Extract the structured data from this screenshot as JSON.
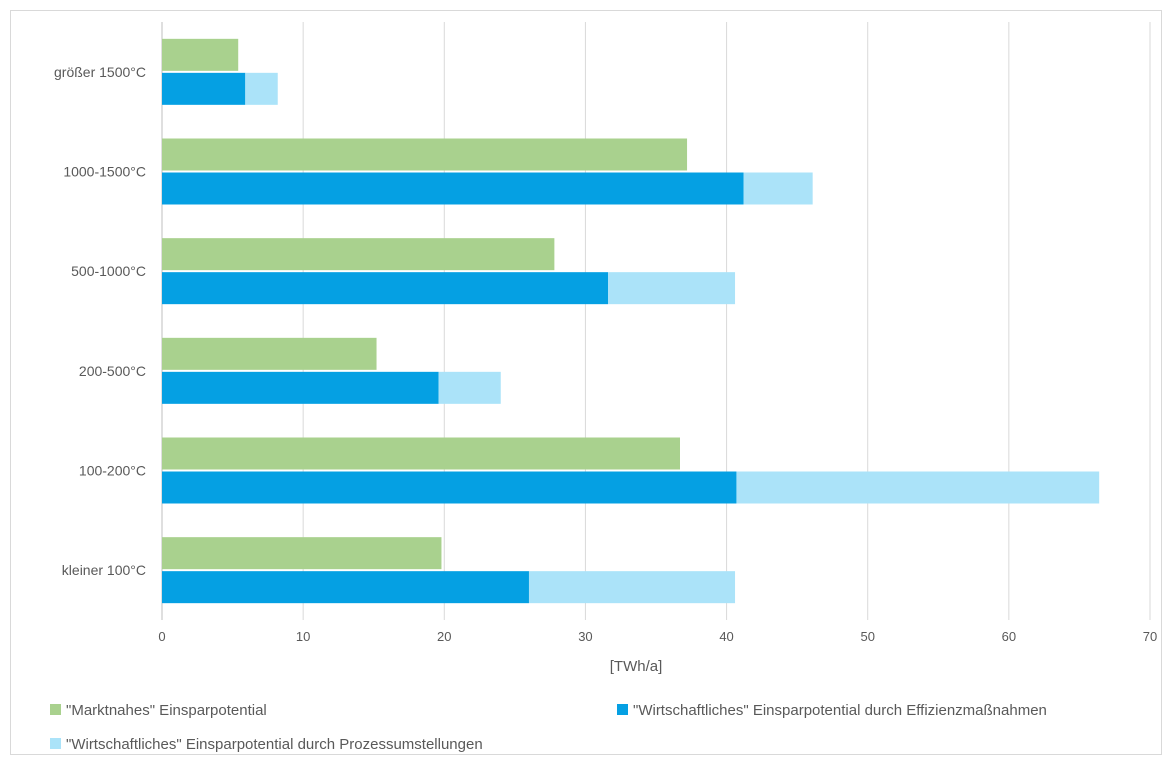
{
  "chart_data": {
    "type": "bar",
    "orientation": "horizontal",
    "title": "",
    "xlabel": "[TWh/a]",
    "ylabel": "",
    "xlim": [
      0,
      70
    ],
    "x_ticks": [
      "0",
      "10",
      "20",
      "30",
      "40",
      "50",
      "60",
      "70"
    ],
    "grid": "vertical",
    "legend_position": "bottom",
    "categories": [
      "größer 1500°C",
      "1000-1500°C",
      "500-1000°C",
      "200-500°C",
      "100-200°C",
      "kleiner 100°C"
    ],
    "series": [
      {
        "name": "\"Marktnahes\" Einsparpotential",
        "color": "#a9d18e",
        "bar": "upper",
        "values": [
          5.4,
          37.2,
          27.8,
          15.2,
          36.7,
          19.8
        ]
      },
      {
        "name": "\"Wirtschaftliches\" Einsparpotential durch Effizienzmaßnahmen",
        "color": "#05a0e3",
        "bar": "lower",
        "stack_base": true,
        "values": [
          5.9,
          41.2,
          31.6,
          19.6,
          40.7,
          26.0
        ]
      },
      {
        "name": "\"Wirtschaftliches\" Einsparpotential durch Prozessumstellungen",
        "color": "#abe3f9",
        "bar": "lower",
        "stacked_on": "\"Wirtschaftliches\" Einsparpotential durch Effizienzmaßnahmen",
        "values": [
          2.3,
          4.9,
          9.0,
          4.4,
          25.7,
          14.6
        ]
      }
    ]
  }
}
